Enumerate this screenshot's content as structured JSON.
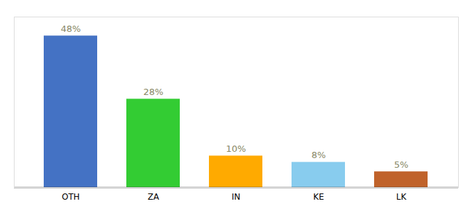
{
  "chart_data": {
    "type": "bar",
    "categories": [
      "OTH",
      "ZA",
      "IN",
      "KE",
      "LK"
    ],
    "values": [
      48,
      28,
      10,
      8,
      5
    ],
    "value_labels": [
      "48%",
      "28%",
      "10%",
      "8%",
      "5%"
    ],
    "colors": [
      "#4472c4",
      "#33cc33",
      "#ffaa00",
      "#88ccee",
      "#c0622a"
    ],
    "ylim": [
      0,
      54
    ],
    "data_labels": true,
    "tick_labels": "x",
    "grid": false
  }
}
